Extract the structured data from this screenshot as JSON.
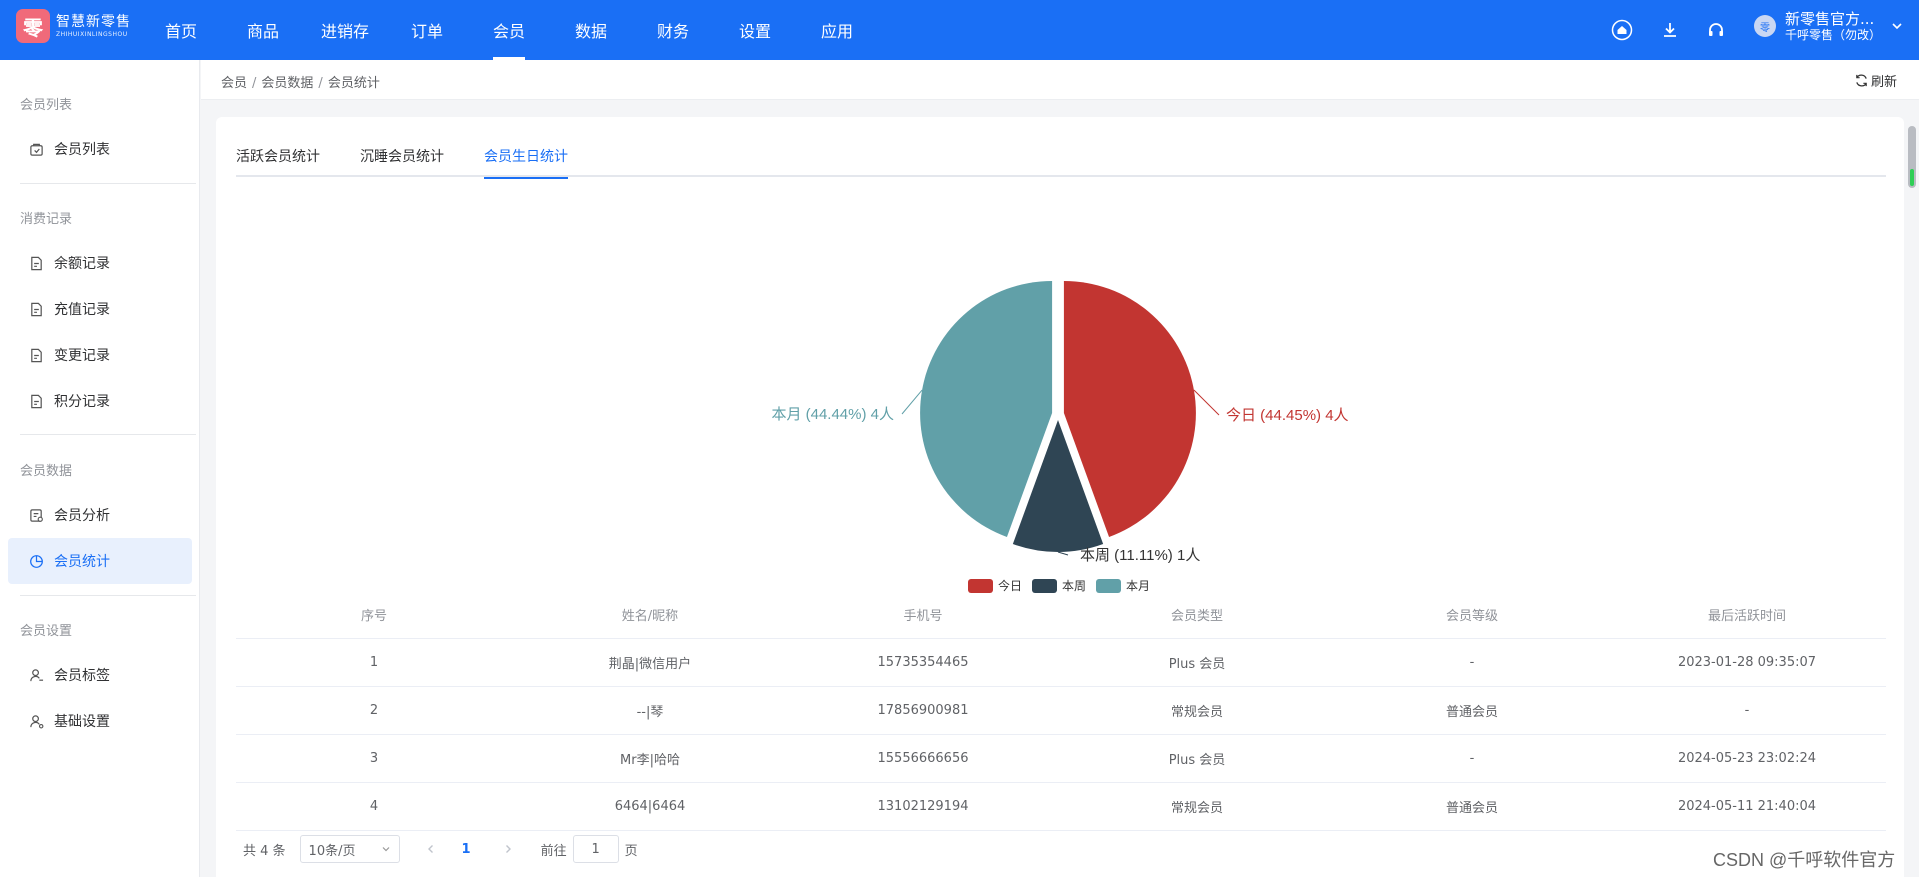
{
  "brand": {
    "logo_char": "零",
    "name": "智慧新零售",
    "subtitle": "ZHIHUIXINLINGSHOU"
  },
  "nav": {
    "items": [
      "首页",
      "商品",
      "进销存",
      "订单",
      "会员",
      "数据",
      "财务",
      "设置",
      "应用"
    ],
    "active_index": 4
  },
  "header": {
    "icons": [
      "home-icon",
      "download-icon",
      "headset-icon"
    ],
    "user_name": "新零售官方...",
    "user_org": "千呼零售（勿改）",
    "avatar_char": "零"
  },
  "sidebar": {
    "groups": [
      {
        "title": "会员列表",
        "items": [
          {
            "label": "会员列表",
            "icon": "member-list-icon"
          }
        ]
      },
      {
        "title": "消费记录",
        "items": [
          {
            "label": "余额记录",
            "icon": "doc-icon"
          },
          {
            "label": "充值记录",
            "icon": "doc-icon"
          },
          {
            "label": "变更记录",
            "icon": "doc-icon"
          },
          {
            "label": "积分记录",
            "icon": "doc-icon"
          }
        ]
      },
      {
        "title": "会员数据",
        "items": [
          {
            "label": "会员分析",
            "icon": "analysis-icon"
          },
          {
            "label": "会员统计",
            "icon": "pie-icon"
          }
        ]
      },
      {
        "title": "会员设置",
        "items": [
          {
            "label": "会员标签",
            "icon": "user-tag-icon"
          },
          {
            "label": "基础设置",
            "icon": "user-settings-icon"
          }
        ]
      }
    ],
    "active_label": "会员统计"
  },
  "breadcrumb": [
    "会员",
    "会员数据",
    "会员统计"
  ],
  "refresh_label": "刷新",
  "tabs": {
    "items": [
      "活跃会员统计",
      "沉睡会员统计",
      "会员生日统计"
    ],
    "active_index": 2
  },
  "chart_data": {
    "type": "pie",
    "slices": [
      {
        "name": "今日",
        "value": 4,
        "percent": "44.45%",
        "label": "今日 (44.45%)  4人",
        "color": "#c23531"
      },
      {
        "name": "本周",
        "value": 1,
        "percent": "11.11%",
        "label": "本周 (11.11%)  1人",
        "color": "#2f4554"
      },
      {
        "name": "本月",
        "value": 4,
        "percent": "44.44%",
        "label": "本月 (44.44%)  4人",
        "color": "#61a0a8"
      }
    ],
    "legend": [
      "今日",
      "本周",
      "本月"
    ],
    "legend_position": "bottom-center"
  },
  "table": {
    "columns": [
      "序号",
      "姓名/昵称",
      "手机号",
      "会员类型",
      "会员等级",
      "最后活跃时间"
    ],
    "rows": [
      [
        "1",
        "荆晶|微信用户",
        "15735354465",
        "Plus 会员",
        "-",
        "2023-01-28 09:35:07"
      ],
      [
        "2",
        "--|琴",
        "17856900981",
        "常规会员",
        "普通会员",
        "-"
      ],
      [
        "3",
        "Mr李|哈哈",
        "15556666656",
        "Plus 会员",
        "-",
        "2024-05-23 23:02:24"
      ],
      [
        "4",
        "6464|6464",
        "13102129194",
        "常规会员",
        "普通会员",
        "2024-05-11 21:40:04"
      ]
    ]
  },
  "pagination": {
    "total_text": "共 4 条",
    "page_size": "10条/页",
    "current_page": "1",
    "goto_prefix": "前往",
    "goto_value": "1",
    "goto_suffix": "页"
  },
  "watermark": "CSDN @千呼软件官方"
}
